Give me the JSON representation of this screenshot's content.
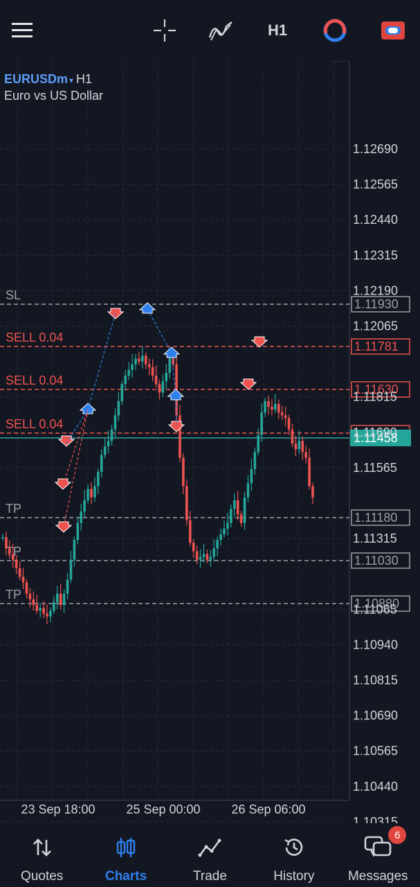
{
  "toolbar": {
    "timeframe": "H1"
  },
  "chart_header": {
    "symbol": "EURUSDm",
    "symbol_arrow": "▾",
    "timeframe": "H1",
    "description": "Euro vs US Dollar"
  },
  "chart_data": {
    "type": "candlestick",
    "y_ticks": [
      "1.12690",
      "1.12565",
      "1.12440",
      "1.12315",
      "1.12190",
      "1.12065",
      "1.11815",
      "1.11690",
      "1.11565",
      "1.11315",
      "1.11065",
      "1.10940",
      "1.10815",
      "1.10690",
      "1.10565",
      "1.10440",
      "1.10315"
    ],
    "x_ticks": [
      "23 Sep 18:00",
      "25 Sep 00:00",
      "26 Sep 06:00"
    ],
    "price_lines": [
      {
        "label": "SL",
        "price": "1.11930",
        "kind": "sl"
      },
      {
        "label": "SELL 0.04",
        "price": "1.11781",
        "kind": "sell"
      },
      {
        "label": "SELL 0.04",
        "price": "1.11630",
        "kind": "sell"
      },
      {
        "label": "SELL 0.04",
        "price": "",
        "kind": "sell"
      },
      {
        "label": "TP",
        "price": "1.11180",
        "kind": "tp"
      },
      {
        "label": "TP",
        "price": "1.11030",
        "kind": "tp"
      },
      {
        "label": "TP",
        "price": "1.10880",
        "kind": "tp"
      }
    ],
    "current_price": "1.11458",
    "colors": {
      "bull": "#26a69a",
      "bear": "#ef5350",
      "sell_line": "#ef5350",
      "neutral_line": "#9aa0a6",
      "current": "#26a69a",
      "blue_arrow": "#2f80ed"
    }
  },
  "bottom_nav": [
    {
      "label": "Quotes",
      "icon": "quotes-icon",
      "active": false
    },
    {
      "label": "Charts",
      "icon": "charts-icon",
      "active": true
    },
    {
      "label": "Trade",
      "icon": "trade-icon",
      "active": false
    },
    {
      "label": "History",
      "icon": "history-icon",
      "active": false
    },
    {
      "label": "Messages",
      "icon": "messages-icon",
      "active": false,
      "badge": "6"
    }
  ]
}
